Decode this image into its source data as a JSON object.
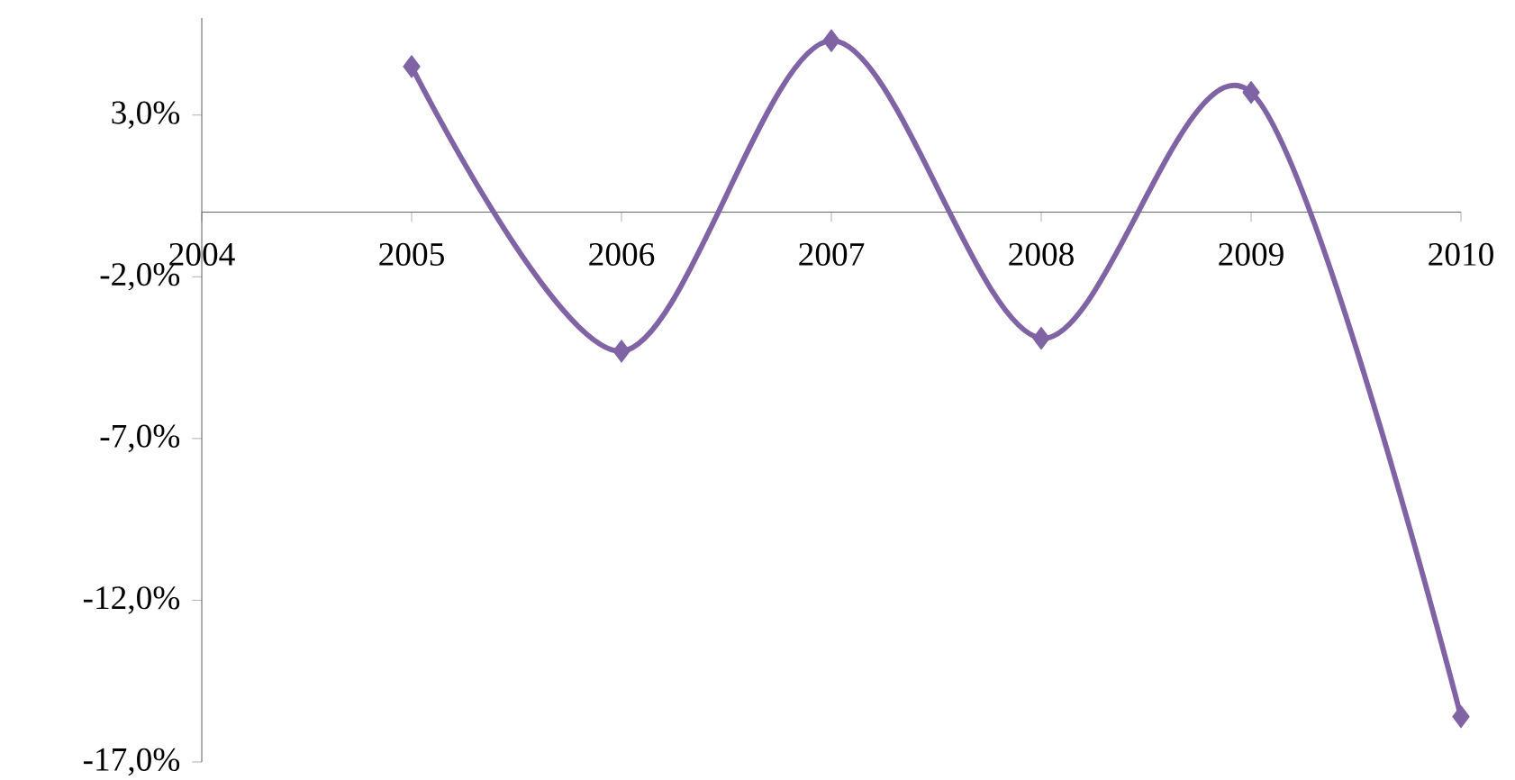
{
  "chart_data": {
    "type": "line",
    "x": [
      2005,
      2006,
      2007,
      2008,
      2009,
      2010
    ],
    "series": [
      {
        "color": "#7f63a4",
        "values": [
          4.5,
          -4.3,
          5.3,
          -3.9,
          3.7,
          -15.6
        ]
      }
    ],
    "xlim": [
      2004,
      2010
    ],
    "xticks": [
      2004,
      2005,
      2006,
      2007,
      2008,
      2009,
      2010
    ],
    "ylim": [
      -17,
      6
    ],
    "yticks": [
      {
        "value": 3,
        "label": "3,0%"
      },
      {
        "value": -2,
        "label": "-2,0%"
      },
      {
        "value": -7,
        "label": "-7,0%"
      },
      {
        "value": -12,
        "label": "-12,0%"
      },
      {
        "value": -17,
        "label": "-17,0%"
      }
    ],
    "marker": "diamond",
    "line_style": "solid",
    "grid": false
  }
}
